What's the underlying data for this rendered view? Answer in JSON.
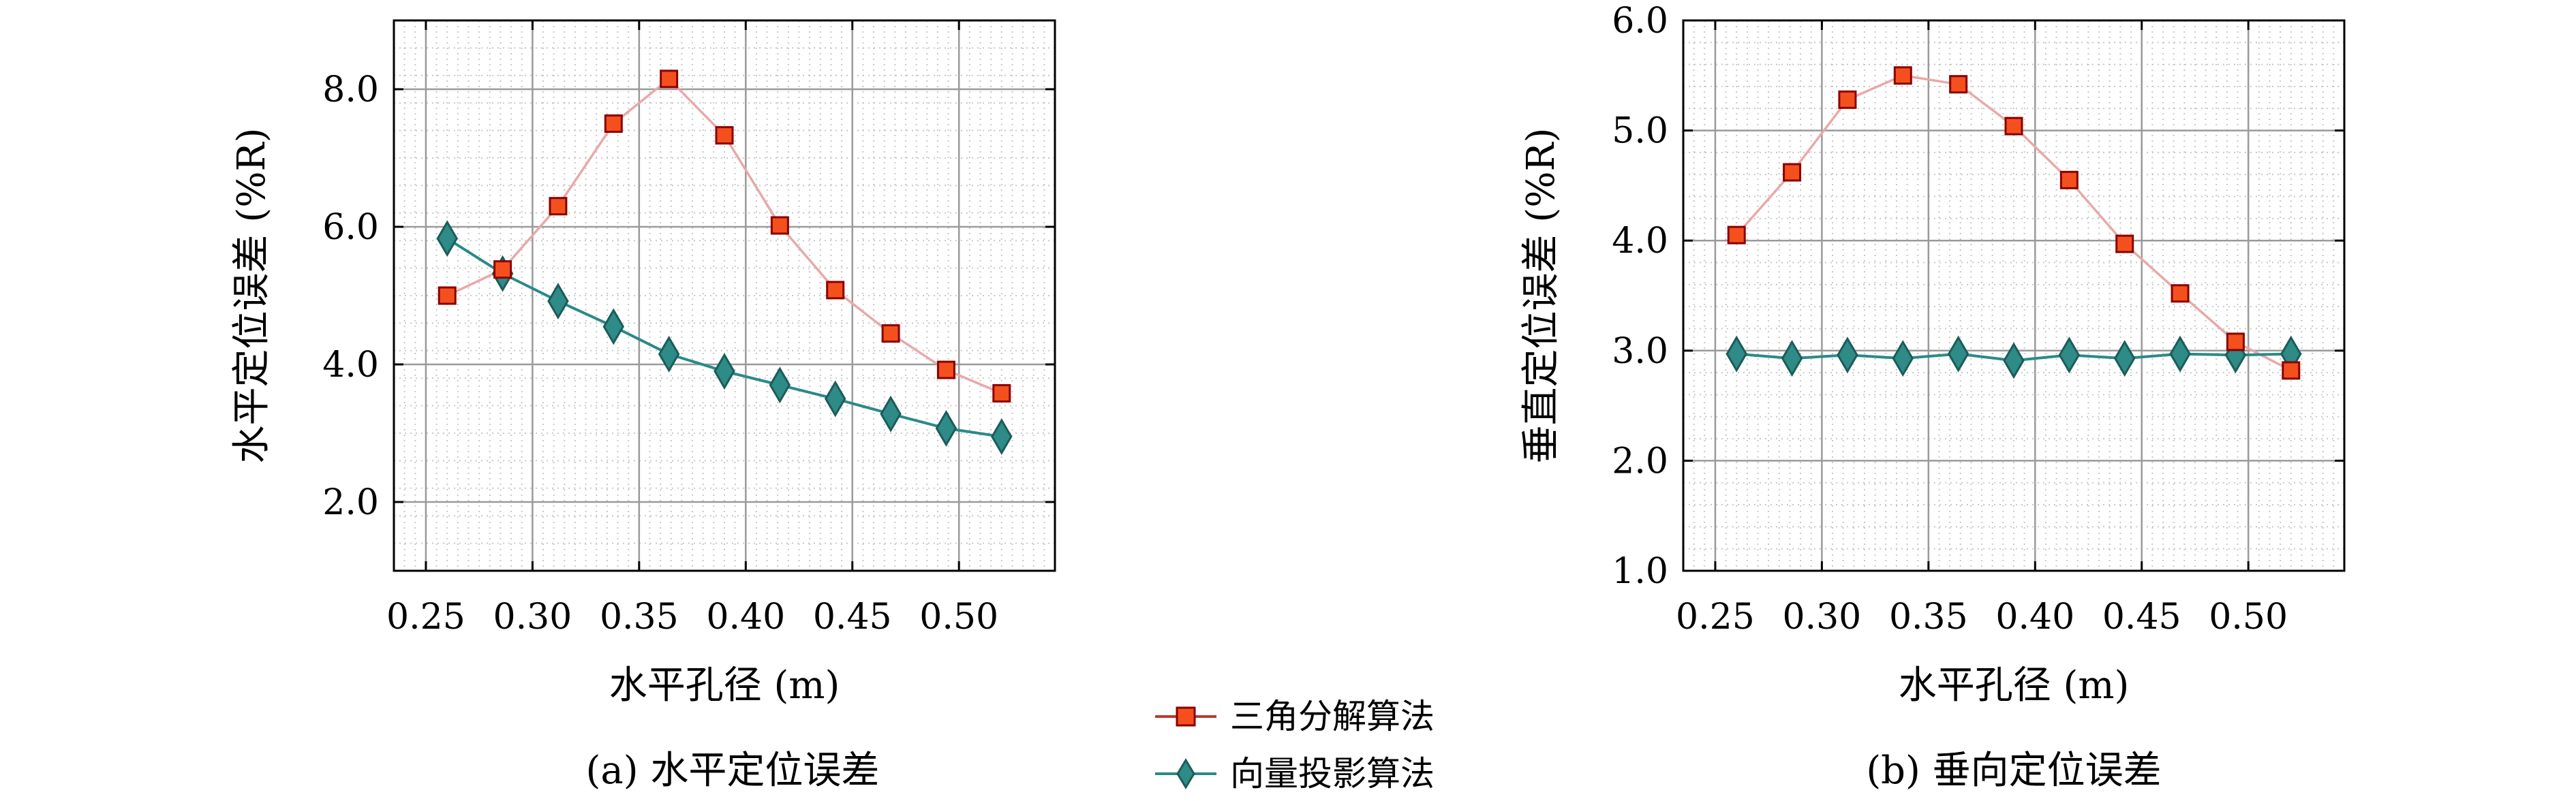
{
  "chart_data": [
    {
      "type": "line",
      "caption": "(a) 水平定位误差",
      "xlabel": "水平孔径 (m)",
      "ylabel": "水平定位误差 (%R)",
      "xlim": [
        0.235,
        0.545
      ],
      "ylim": [
        1.0,
        9.0
      ],
      "xticks": [
        0.25,
        0.3,
        0.35,
        0.4,
        0.45,
        0.5
      ],
      "xtick_labels": [
        "0.25",
        "0.30",
        "0.35",
        "0.40",
        "0.45",
        "0.50"
      ],
      "yticks": [
        2.0,
        4.0,
        6.0,
        8.0
      ],
      "ytick_labels": [
        "2.0",
        "4.0",
        "6.0",
        "8.0"
      ],
      "grid": true,
      "x": [
        0.26,
        0.286,
        0.312,
        0.338,
        0.364,
        0.39,
        0.416,
        0.442,
        0.468,
        0.494,
        0.52
      ],
      "series": [
        {
          "name": "三角分解算法",
          "values": [
            5.0,
            5.38,
            6.3,
            7.5,
            8.15,
            7.33,
            6.02,
            5.08,
            4.45,
            3.92,
            3.58
          ]
        },
        {
          "name": "向量投影算法",
          "values": [
            5.83,
            5.32,
            4.92,
            4.55,
            4.15,
            3.9,
            3.7,
            3.5,
            3.28,
            3.07,
            2.95
          ]
        }
      ]
    },
    {
      "type": "line",
      "caption": "(b) 垂向定位误差",
      "xlabel": "水平孔径 (m)",
      "ylabel": "垂直定位误差 (%R)",
      "xlim": [
        0.235,
        0.545
      ],
      "ylim": [
        1.0,
        6.0
      ],
      "xticks": [
        0.25,
        0.3,
        0.35,
        0.4,
        0.45,
        0.5
      ],
      "xtick_labels": [
        "0.25",
        "0.30",
        "0.35",
        "0.40",
        "0.45",
        "0.50"
      ],
      "yticks": [
        1.0,
        2.0,
        3.0,
        4.0,
        5.0,
        6.0
      ],
      "ytick_labels": [
        "1.0",
        "2.0",
        "3.0",
        "4.0",
        "5.0",
        "6.0"
      ],
      "grid": true,
      "x": [
        0.26,
        0.286,
        0.312,
        0.338,
        0.364,
        0.39,
        0.416,
        0.442,
        0.468,
        0.494,
        0.52
      ],
      "series": [
        {
          "name": "三角分解算法",
          "values": [
            4.05,
            4.62,
            5.28,
            5.5,
            5.42,
            5.04,
            4.55,
            3.97,
            3.52,
            3.08,
            2.82
          ]
        },
        {
          "name": "向量投影算法",
          "values": [
            2.97,
            2.93,
            2.96,
            2.93,
            2.97,
            2.91,
            2.96,
            2.93,
            2.97,
            2.96,
            2.97
          ]
        }
      ]
    }
  ],
  "legend": {
    "position": "bottom-center",
    "items": [
      {
        "label": "三角分解算法",
        "marker": "square"
      },
      {
        "label": "向量投影算法",
        "marker": "diamond"
      }
    ]
  },
  "colors": {
    "triangle_line": "#e8a9a9",
    "triangle_fill": "#f4501e",
    "triangle_edge": "#8b0000",
    "vector_line": "#2a8a88",
    "vector_fill": "#2e8b87",
    "vector_edge": "#1b5c59",
    "grid_major": "#9a9a9a",
    "grid_minor": "#c8c8c8",
    "legend_line": "#c0392b"
  }
}
